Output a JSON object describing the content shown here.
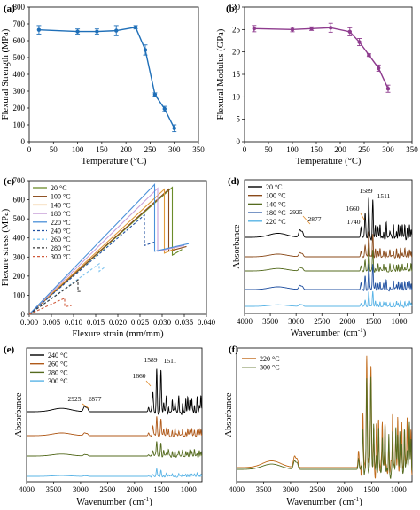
{
  "chart_data": [
    {
      "panel": "(a)",
      "type": "line",
      "xlabel": "Temperature (°C)",
      "ylabel": "Flexural Strength (MPa)",
      "xlim": [
        0,
        350
      ],
      "ylim": [
        0,
        800
      ],
      "xticks": [
        0,
        50,
        100,
        150,
        200,
        250,
        300,
        350
      ],
      "yticks": [
        0,
        100,
        200,
        300,
        400,
        500,
        600,
        700,
        800
      ],
      "color": "#1f6fb8",
      "series": [
        {
          "x": [
            20,
            100,
            140,
            180,
            220,
            240,
            260,
            280,
            300
          ],
          "y": [
            665,
            655,
            655,
            660,
            680,
            545,
            280,
            195,
            80
          ],
          "err": [
            25,
            15,
            15,
            30,
            10,
            30,
            10,
            15,
            20
          ]
        }
      ]
    },
    {
      "panel": "(b)",
      "type": "line",
      "xlabel": "Temperature (°C)",
      "ylabel": "Flexural Modulus (GPa)",
      "xlim": [
        0,
        350
      ],
      "ylim": [
        0,
        30
      ],
      "xticks": [
        0,
        50,
        100,
        150,
        200,
        250,
        300,
        350
      ],
      "yticks": [
        0,
        5,
        10,
        15,
        20,
        25,
        30
      ],
      "color": "#8e3b8e",
      "series": [
        {
          "x": [
            20,
            100,
            140,
            180,
            220,
            240,
            260,
            280,
            300
          ],
          "y": [
            25.2,
            25.0,
            25.2,
            25.4,
            24.5,
            22.2,
            19.3,
            16.4,
            11.8
          ],
          "err": [
            0.7,
            0.5,
            0.4,
            1.0,
            0.9,
            0.8,
            0.3,
            0.7,
            0.8
          ]
        }
      ]
    },
    {
      "panel": "(c)",
      "type": "line",
      "xlabel": "Flexure strain (mm/mm)",
      "ylabel": "Flexure stress (MPa)",
      "xlim": [
        0,
        0.04
      ],
      "ylim": [
        0,
        700
      ],
      "xticks": [
        "0.000",
        "0.005",
        "0.010",
        "0.015",
        "0.020",
        "0.025",
        "0.030",
        "0.035",
        "0.040"
      ],
      "yticks": [
        0,
        100,
        200,
        300,
        400,
        500,
        600,
        700
      ],
      "legend": "top-left",
      "series": [
        {
          "name": "20  °C",
          "color": "#6b8c2a",
          "dash": false,
          "pts": [
            [
              0,
              0
            ],
            [
              0.0323,
              665
            ],
            [
              0.0323,
              310
            ],
            [
              0.0345,
              340
            ]
          ]
        },
        {
          "name": "100 °C",
          "color": "#8a4a1a",
          "dash": false,
          "pts": [
            [
              0,
              0
            ],
            [
              0.0315,
              655
            ],
            [
              0.0315,
              330
            ],
            [
              0.0355,
              355
            ]
          ]
        },
        {
          "name": "140 °C",
          "color": "#e09a3a",
          "dash": false,
          "pts": [
            [
              0,
              0
            ],
            [
              0.0305,
              655
            ],
            [
              0.0305,
              320
            ],
            [
              0.033,
              345
            ]
          ]
        },
        {
          "name": "180 °C",
          "color": "#c8a0d8",
          "dash": false,
          "pts": [
            [
              0,
              0
            ],
            [
              0.029,
              660
            ],
            [
              0.029,
              330
            ],
            [
              0.035,
              360
            ]
          ]
        },
        {
          "name": "220 °C",
          "color": "#4a90d9",
          "dash": false,
          "pts": [
            [
              0,
              0
            ],
            [
              0.0283,
              680
            ],
            [
              0.0283,
              330
            ],
            [
              0.036,
              370
            ]
          ]
        },
        {
          "name": "240 °C",
          "color": "#1f4fa0",
          "dash": true,
          "pts": [
            [
              0,
              0
            ],
            [
              0.026,
              520
            ],
            [
              0.026,
              360
            ],
            [
              0.0285,
              380
            ]
          ]
        },
        {
          "name": "260 °C",
          "color": "#7ec4f0",
          "dash": true,
          "pts": [
            [
              0,
              0
            ],
            [
              0.0158,
              265
            ],
            [
              0.0158,
              225
            ],
            [
              0.0172,
              250
            ]
          ]
        },
        {
          "name": "280 °C",
          "color": "#333333",
          "dash": true,
          "pts": [
            [
              0,
              0
            ],
            [
              0.011,
              180
            ],
            [
              0.011,
              120
            ],
            [
              0.012,
              120
            ]
          ]
        },
        {
          "name": "300 °C",
          "color": "#d05a3a",
          "dash": true,
          "pts": [
            [
              0,
              0
            ],
            [
              0.008,
              85
            ],
            [
              0.008,
              40
            ],
            [
              0.0095,
              45
            ]
          ]
        }
      ]
    },
    {
      "panel": "(d)",
      "type": "line",
      "xlabel": "Wavenumber",
      "xunit": "(cm",
      "xunit_sup": "-1",
      "xunit_close": ")",
      "ylabel": "Absorbance",
      "xlim": [
        4000,
        750
      ],
      "xticks": [
        4000,
        3500,
        3000,
        2500,
        2000,
        1500,
        1000
      ],
      "legend": "top-left",
      "annotations": [
        "2925",
        "2877",
        "1660",
        "1740",
        "1589",
        "1511"
      ],
      "series": [
        {
          "name": "20  °C",
          "color": "#000000"
        },
        {
          "name": "100 °C",
          "color": "#8a4a1a"
        },
        {
          "name": "140 °C",
          "color": "#556b1f"
        },
        {
          "name": "180 °C",
          "color": "#1f4fa0"
        },
        {
          "name": "220 °C",
          "color": "#5ab4e6"
        }
      ]
    },
    {
      "panel": "(e)",
      "type": "line",
      "xlabel": "Wavenumber",
      "xunit": "(cm",
      "xunit_sup": "-1",
      "xunit_close": ")",
      "ylabel": "Absorbance",
      "xlim": [
        4000,
        750
      ],
      "xticks": [
        4000,
        3500,
        3000,
        2500,
        2000,
        1500,
        1000
      ],
      "legend": "top-left",
      "annotations": [
        "2925",
        "2877",
        "1660",
        "1589",
        "1511"
      ],
      "series": [
        {
          "name": "240 °C",
          "color": "#000000"
        },
        {
          "name": "260 °C",
          "color": "#b05a1a"
        },
        {
          "name": "280 °C",
          "color": "#556b1f"
        },
        {
          "name": "300 °C",
          "color": "#5ab4e6"
        }
      ]
    },
    {
      "panel": "(f)",
      "type": "line",
      "xlabel": "Wavenumber",
      "xunit": "(cm",
      "xunit_sup": "-1",
      "xunit_close": ")",
      "ylabel": "Absorbance",
      "xlim": [
        4000,
        750
      ],
      "xticks": [
        4000,
        3500,
        3000,
        2500,
        2000,
        1500,
        1000
      ],
      "legend": "top-left",
      "series": [
        {
          "name": "220 °C",
          "color": "#c06a1a"
        },
        {
          "name": "300 °C",
          "color": "#556b1f"
        }
      ]
    }
  ]
}
